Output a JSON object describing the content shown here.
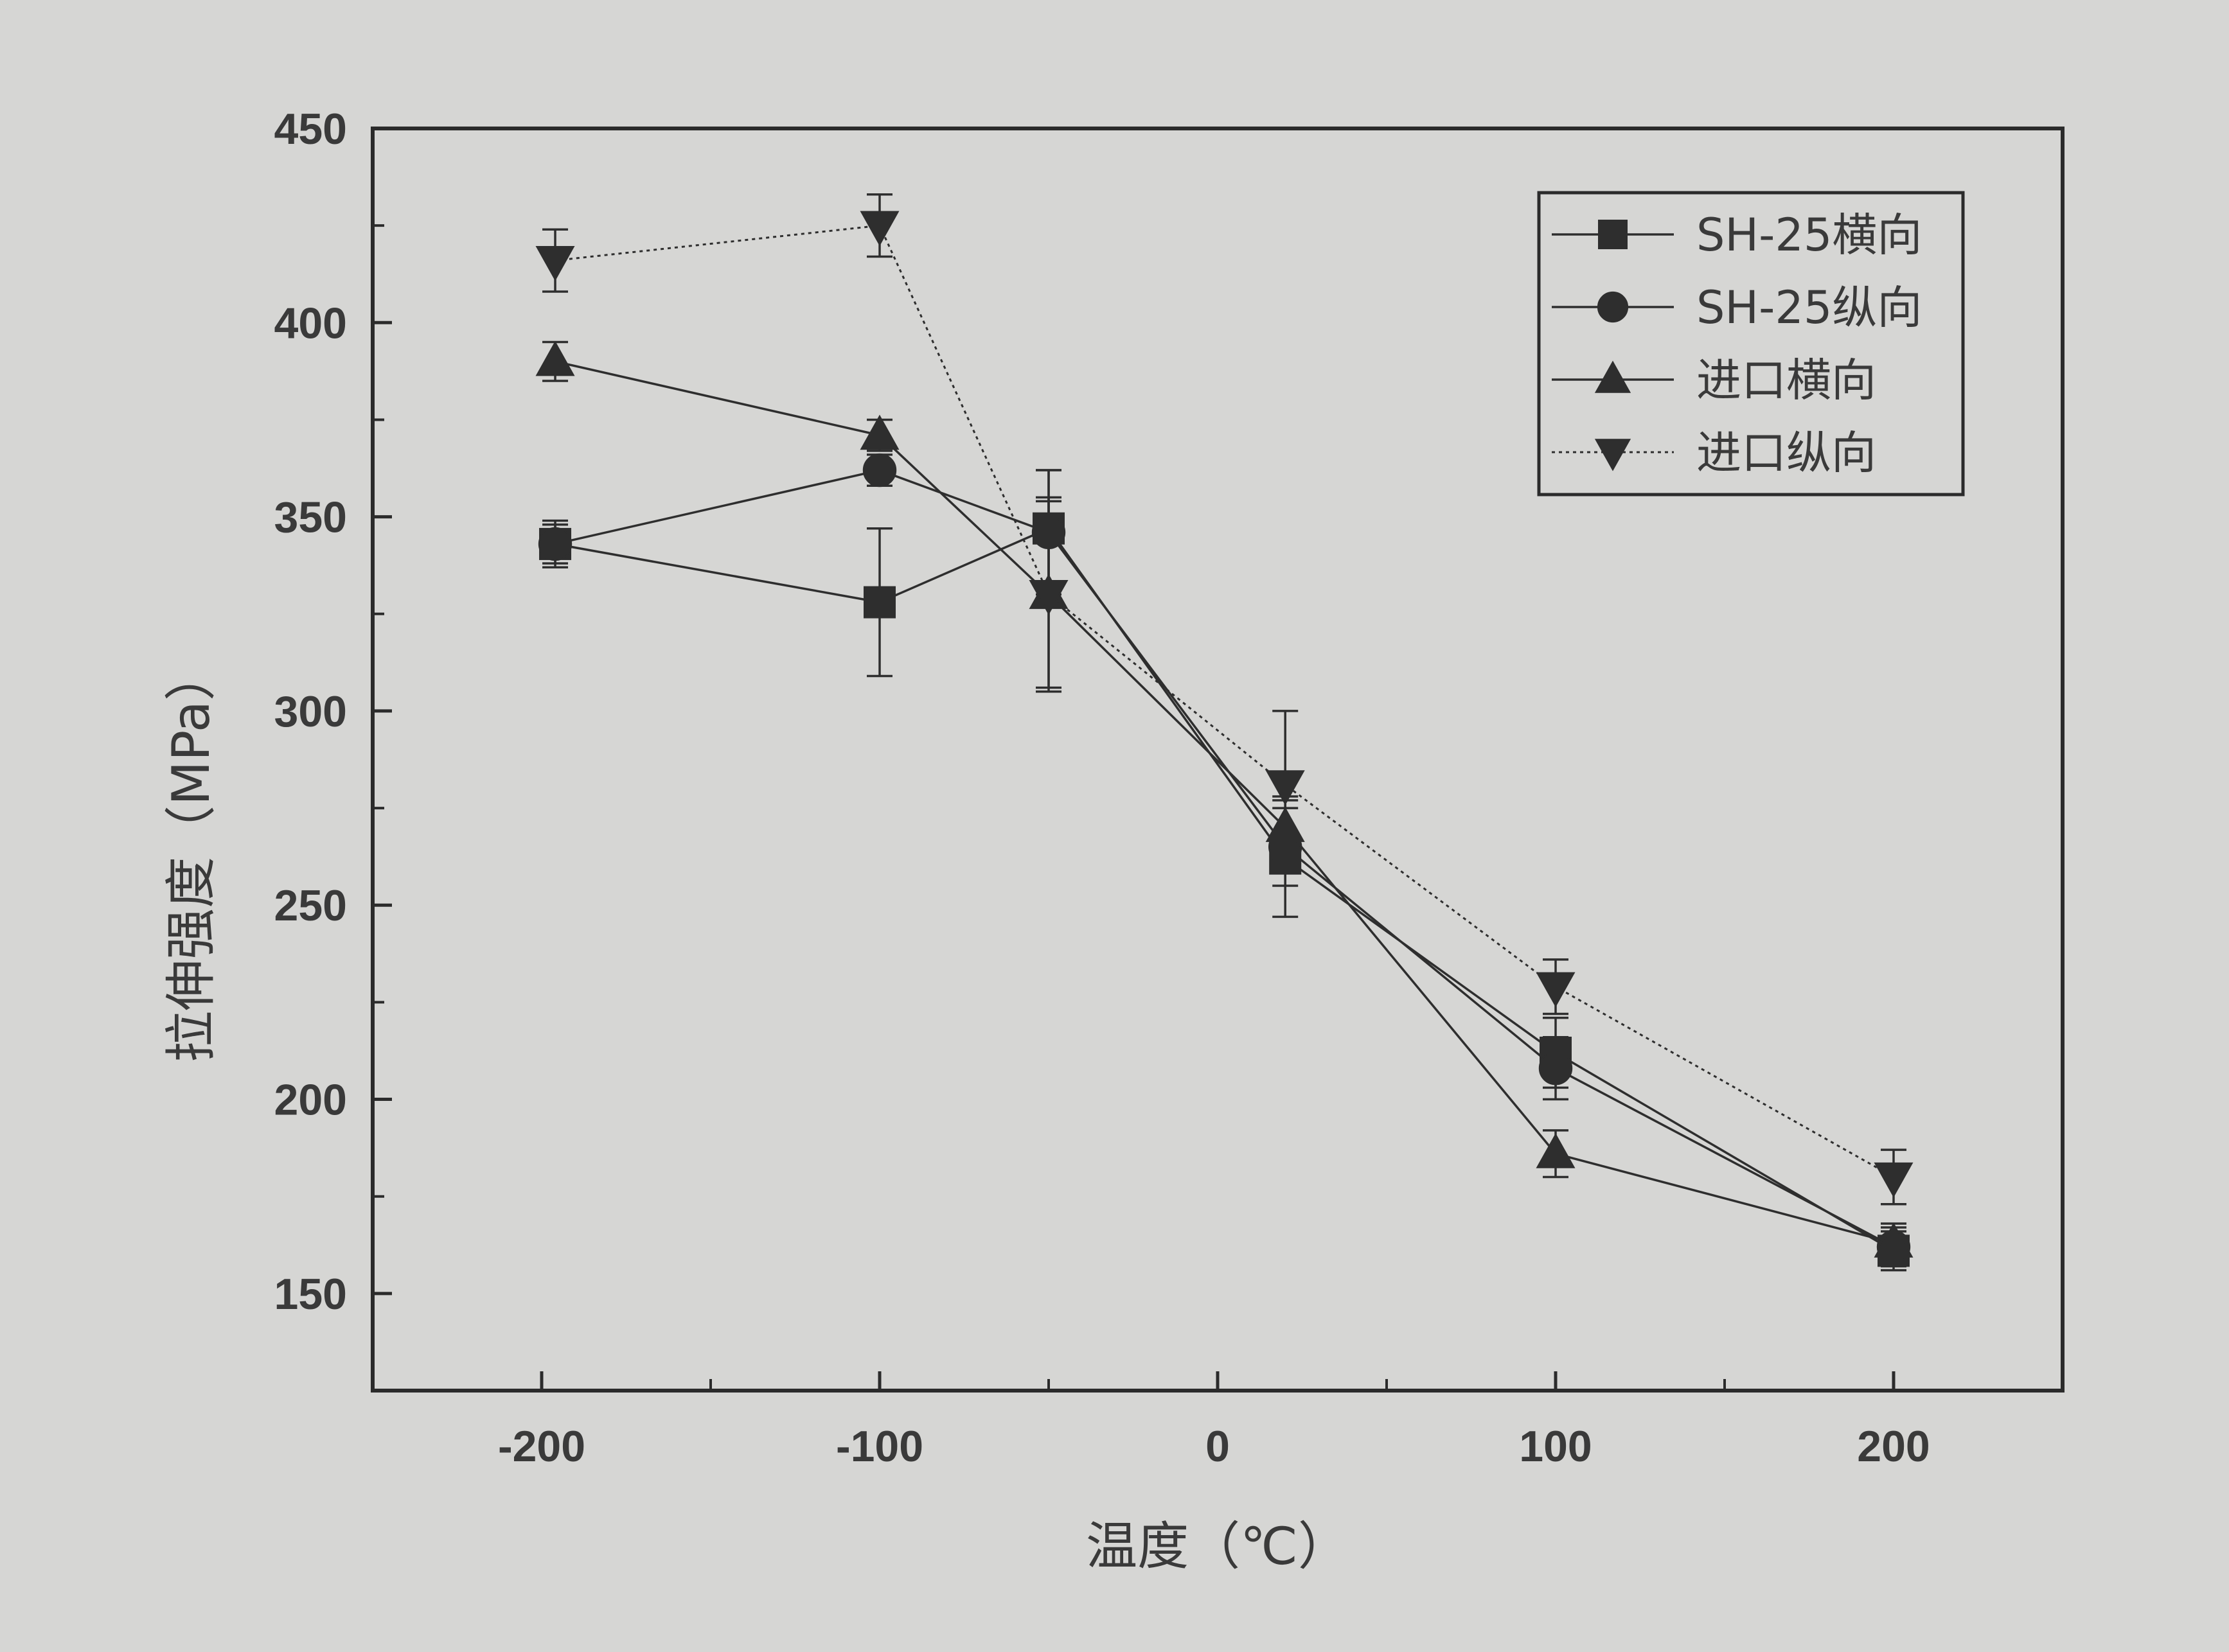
{
  "chart_data": {
    "type": "line",
    "title": "",
    "xlabel": "温度（℃）",
    "ylabel": "拉伸强度（MPa）",
    "xlim": [
      -250,
      250
    ],
    "ylim": [
      125,
      450
    ],
    "xticks": [
      -200,
      -100,
      0,
      100,
      200
    ],
    "yticks": [
      150,
      200,
      250,
      300,
      350,
      400,
      450
    ],
    "x_tick_labels": [
      "-200",
      "-100",
      "0",
      "100",
      "200"
    ],
    "y_tick_labels": [
      "150",
      "200",
      "250",
      "300",
      "350",
      "400",
      "450"
    ],
    "grid": false,
    "legend_position": "top-right",
    "series": [
      {
        "name": "SH-25横向",
        "marker": "square",
        "line_style": "solid",
        "x": [
          -196,
          -100,
          -50,
          20,
          100,
          200
        ],
        "y": [
          343,
          328,
          347,
          262,
          212,
          161
        ],
        "err": [
          6,
          19,
          15,
          15,
          9,
          5
        ]
      },
      {
        "name": "SH-25纵向",
        "marker": "circle",
        "line_style": "solid",
        "x": [
          -196,
          -100,
          -50,
          20,
          100,
          200
        ],
        "y": [
          343,
          362,
          346,
          265,
          208,
          162
        ],
        "err": [
          5,
          4,
          16,
          10,
          8,
          5
        ]
      },
      {
        "name": "进口横向",
        "marker": "triangle-up",
        "line_style": "solid",
        "x": [
          -196,
          -100,
          -50,
          20,
          100,
          200
        ],
        "y": [
          390,
          371,
          330,
          270,
          186,
          163
        ],
        "err": [
          5,
          4,
          24,
          8,
          6,
          5
        ]
      },
      {
        "name": "进口纵向",
        "marker": "triangle-down",
        "line_style": "dotted",
        "x": [
          -196,
          -100,
          -50,
          20,
          100,
          200
        ],
        "y": [
          416,
          425,
          330,
          281,
          229,
          180
        ],
        "err": [
          8,
          8,
          25,
          19,
          7,
          7
        ]
      }
    ],
    "colors": {
      "series": "#2e2e2e",
      "axes": "#2b2b2b",
      "background": "#d6d6d4"
    }
  }
}
